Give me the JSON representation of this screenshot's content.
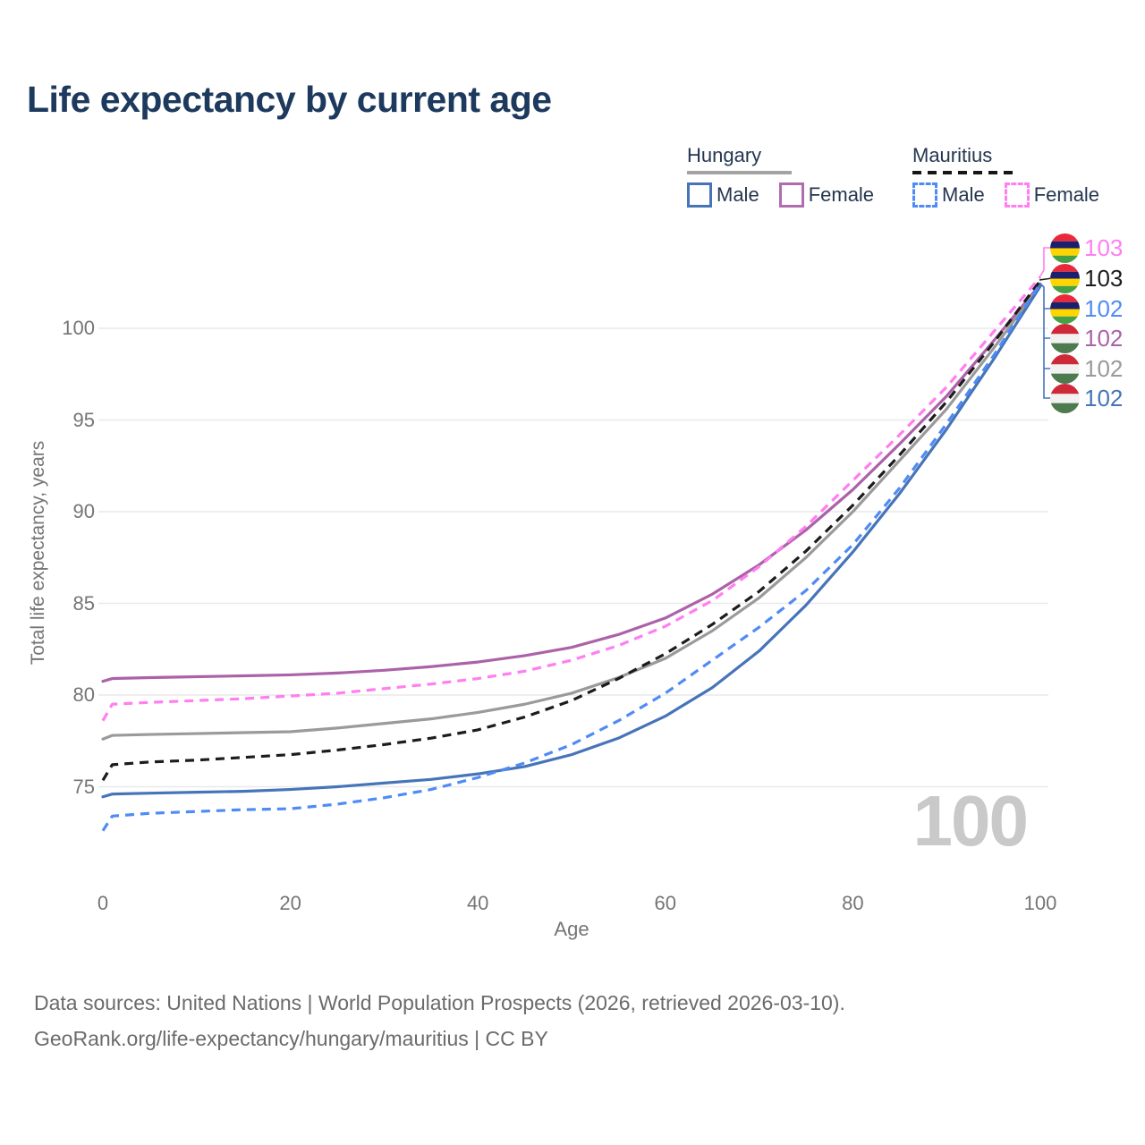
{
  "title": "Life expectancy by current age",
  "legend": {
    "groups": [
      {
        "country": "Hungary",
        "line_style": "solid",
        "items": [
          {
            "label": "Male",
            "color": "#4674b8"
          },
          {
            "label": "Female",
            "color": "#b06cae"
          }
        ]
      },
      {
        "country": "Mauritius",
        "line_style": "dashed",
        "items": [
          {
            "label": "Male",
            "color": "#4f8bf5"
          },
          {
            "label": "Female",
            "color": "#ff7ef0"
          }
        ]
      }
    ]
  },
  "watermark": "100",
  "footer": {
    "line1": "Data sources: United Nations | World Population Prospects (2026, retrieved 2026-03-10).",
    "line2": "GeoRank.org/life-expectancy/hungary/mauritius | CC BY"
  },
  "colors": {
    "title": "#1d3a5e",
    "axis_text": "#757575",
    "grid": "#e9e9e9",
    "watermark": "#c9c9c9",
    "footer_text": "#6b6b6b",
    "legend_text": "#253650"
  },
  "chart_data": {
    "type": "line",
    "title": "Life expectancy by current age",
    "xlabel": "Age",
    "ylabel": "Total life expectancy, years",
    "xlim": [
      0,
      100
    ],
    "ylim": [
      72,
      103.5
    ],
    "x_ticks": [
      0,
      20,
      40,
      60,
      80,
      100
    ],
    "y_ticks": [
      75,
      80,
      85,
      90,
      95,
      100
    ],
    "grid": "horizontal-only",
    "legend_position": "top-right",
    "x": [
      0,
      1,
      5,
      10,
      15,
      20,
      25,
      30,
      35,
      40,
      45,
      50,
      55,
      60,
      65,
      70,
      75,
      80,
      85,
      90,
      95,
      100
    ],
    "series": [
      {
        "name": "Hungary Female",
        "country": "Hungary",
        "sex": "female",
        "color": "#ab62a8",
        "style": "solid",
        "values": [
          80.75,
          80.9,
          80.95,
          81,
          81.05,
          81.1,
          81.2,
          81.35,
          81.55,
          81.8,
          82.15,
          82.6,
          83.3,
          84.2,
          85.5,
          87.1,
          89,
          91.2,
          93.7,
          96.3,
          99.3,
          102.4
        ]
      },
      {
        "name": "Hungary Total",
        "country": "Hungary",
        "sex": "both",
        "color": "#9a9a9a",
        "style": "solid",
        "values": [
          77.6,
          77.8,
          77.85,
          77.9,
          77.95,
          78,
          78.2,
          78.45,
          78.7,
          79.05,
          79.5,
          80.1,
          80.95,
          82,
          83.5,
          85.3,
          87.5,
          90,
          92.8,
          95.6,
          98.9,
          102.35
        ]
      },
      {
        "name": "Hungary Male",
        "country": "Hungary",
        "sex": "male",
        "color": "#4674b8",
        "style": "solid",
        "values": [
          74.45,
          74.6,
          74.65,
          74.7,
          74.75,
          74.85,
          75,
          75.2,
          75.4,
          75.7,
          76.1,
          76.75,
          77.65,
          78.85,
          80.4,
          82.4,
          84.9,
          87.8,
          91,
          94.5,
          98.3,
          102.3
        ]
      },
      {
        "name": "Mauritius Female",
        "country": "Mauritius",
        "sex": "female",
        "color": "#ff7ef0",
        "style": "dashed",
        "values": [
          78.6,
          79.5,
          79.6,
          79.7,
          79.8,
          79.95,
          80.1,
          80.35,
          80.6,
          80.9,
          81.3,
          81.9,
          82.7,
          83.75,
          85.15,
          87,
          89.2,
          91.7,
          94.2,
          96.8,
          99.8,
          102.8
        ]
      },
      {
        "name": "Mauritius Total",
        "country": "Mauritius",
        "sex": "both",
        "color": "#1c1c1c",
        "style": "dashed",
        "values": [
          75.35,
          76.2,
          76.35,
          76.45,
          76.6,
          76.75,
          77,
          77.3,
          77.65,
          78.1,
          78.8,
          79.7,
          80.9,
          82.25,
          83.85,
          85.65,
          87.85,
          90.35,
          93.1,
          96,
          99.2,
          102.6
        ]
      },
      {
        "name": "Mauritius Male",
        "country": "Mauritius",
        "sex": "male",
        "color": "#4f8bf5",
        "style": "dashed",
        "values": [
          72.6,
          73.4,
          73.55,
          73.65,
          73.75,
          73.8,
          74.05,
          74.4,
          74.85,
          75.5,
          76.3,
          77.3,
          78.6,
          80.1,
          81.9,
          83.7,
          85.7,
          88.2,
          91.3,
          94.8,
          98.5,
          102.45
        ]
      }
    ],
    "end_labels": [
      {
        "value": 103,
        "series": "Mauritius Female",
        "flag": "mauritius",
        "color": "#ff7ef0"
      },
      {
        "value": 103,
        "series": "Mauritius Total",
        "flag": "mauritius",
        "color": "#1c1c1c"
      },
      {
        "value": 102,
        "series": "Mauritius Male",
        "flag": "mauritius",
        "color": "#4f8bf5"
      },
      {
        "value": 102,
        "series": "Hungary Female",
        "flag": "hungary",
        "color": "#ab62a8"
      },
      {
        "value": 102,
        "series": "Hungary Total",
        "flag": "hungary",
        "color": "#9a9a9a"
      },
      {
        "value": 102,
        "series": "Hungary Male",
        "flag": "hungary",
        "color": "#4674b8"
      }
    ]
  }
}
